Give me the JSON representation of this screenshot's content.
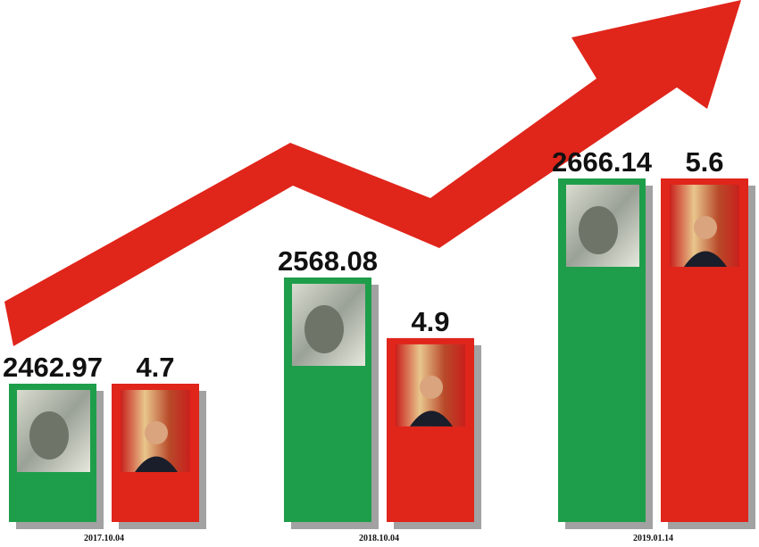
{
  "chart_data": {
    "type": "bar",
    "categories": [
      "2017.10.04",
      "2018.10.04",
      "2019.01.14"
    ],
    "series": [
      {
        "color": "#1e9e4a",
        "values": [
          2462.97,
          2568.08,
          2666.14
        ]
      },
      {
        "color": "#e0251b",
        "values": [
          4.7,
          4.9,
          5.6
        ]
      }
    ]
  }
}
